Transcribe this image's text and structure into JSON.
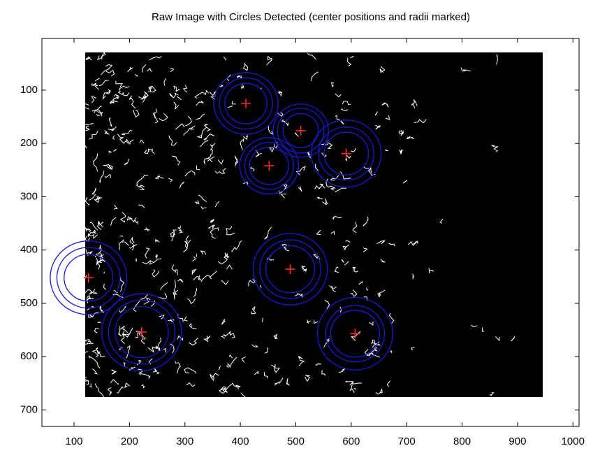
{
  "chart_data": {
    "type": "scatter",
    "title": "Raw Image with Circles Detected (center positions and radii marked)",
    "x": [
      410,
      509,
      452,
      591,
      126,
      490,
      222,
      607
    ],
    "y": [
      125,
      176,
      242,
      219,
      452,
      436,
      554,
      557
    ],
    "radii": [
      [
        38,
        48,
        58
      ],
      [
        32,
        42,
        50
      ],
      [
        35,
        44,
        53
      ],
      [
        40,
        50,
        63
      ],
      [
        44,
        57,
        69
      ],
      [
        44,
        55,
        67
      ],
      [
        48,
        60,
        72
      ],
      [
        44,
        53,
        68
      ]
    ],
    "center_color": "#ff2a2a",
    "circle_color": "#1a1ad0",
    "xlim": [
      42,
      1011
    ],
    "ylim": [
      731,
      3
    ],
    "y_reversed": true,
    "xticks": [
      100,
      200,
      300,
      400,
      500,
      600,
      700,
      800,
      900,
      1000
    ],
    "yticks": [
      100,
      200,
      300,
      400,
      500,
      600,
      700
    ]
  }
}
